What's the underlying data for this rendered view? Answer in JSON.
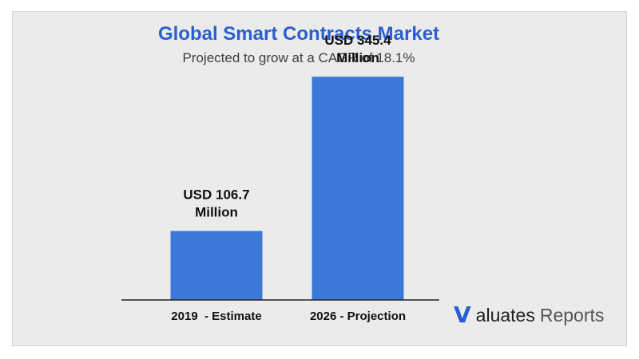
{
  "chart_data": {
    "type": "bar",
    "title": "Global Smart Contracts Market",
    "subtitle": "Projected to grow at a CAGR of 18.1%",
    "categories": [
      "2019  - Estimate",
      "2026 - Projection"
    ],
    "values": [
      106.7,
      345.4
    ],
    "data_labels": [
      [
        "USD 106.7",
        "Million"
      ],
      [
        "USD 345.4",
        "Million"
      ]
    ],
    "unit": "USD Million",
    "ylim": [
      0,
      390
    ],
    "grid": false,
    "legend": "none",
    "bar_color": "#3b78d8",
    "baseline_color": "#222222"
  },
  "colors": {
    "title": "#2a5fd1",
    "background": "#ebebeb",
    "bar": "#3b78d8"
  },
  "logo": {
    "mark": "V",
    "word": "aluates",
    "suffix": "Reports"
  }
}
